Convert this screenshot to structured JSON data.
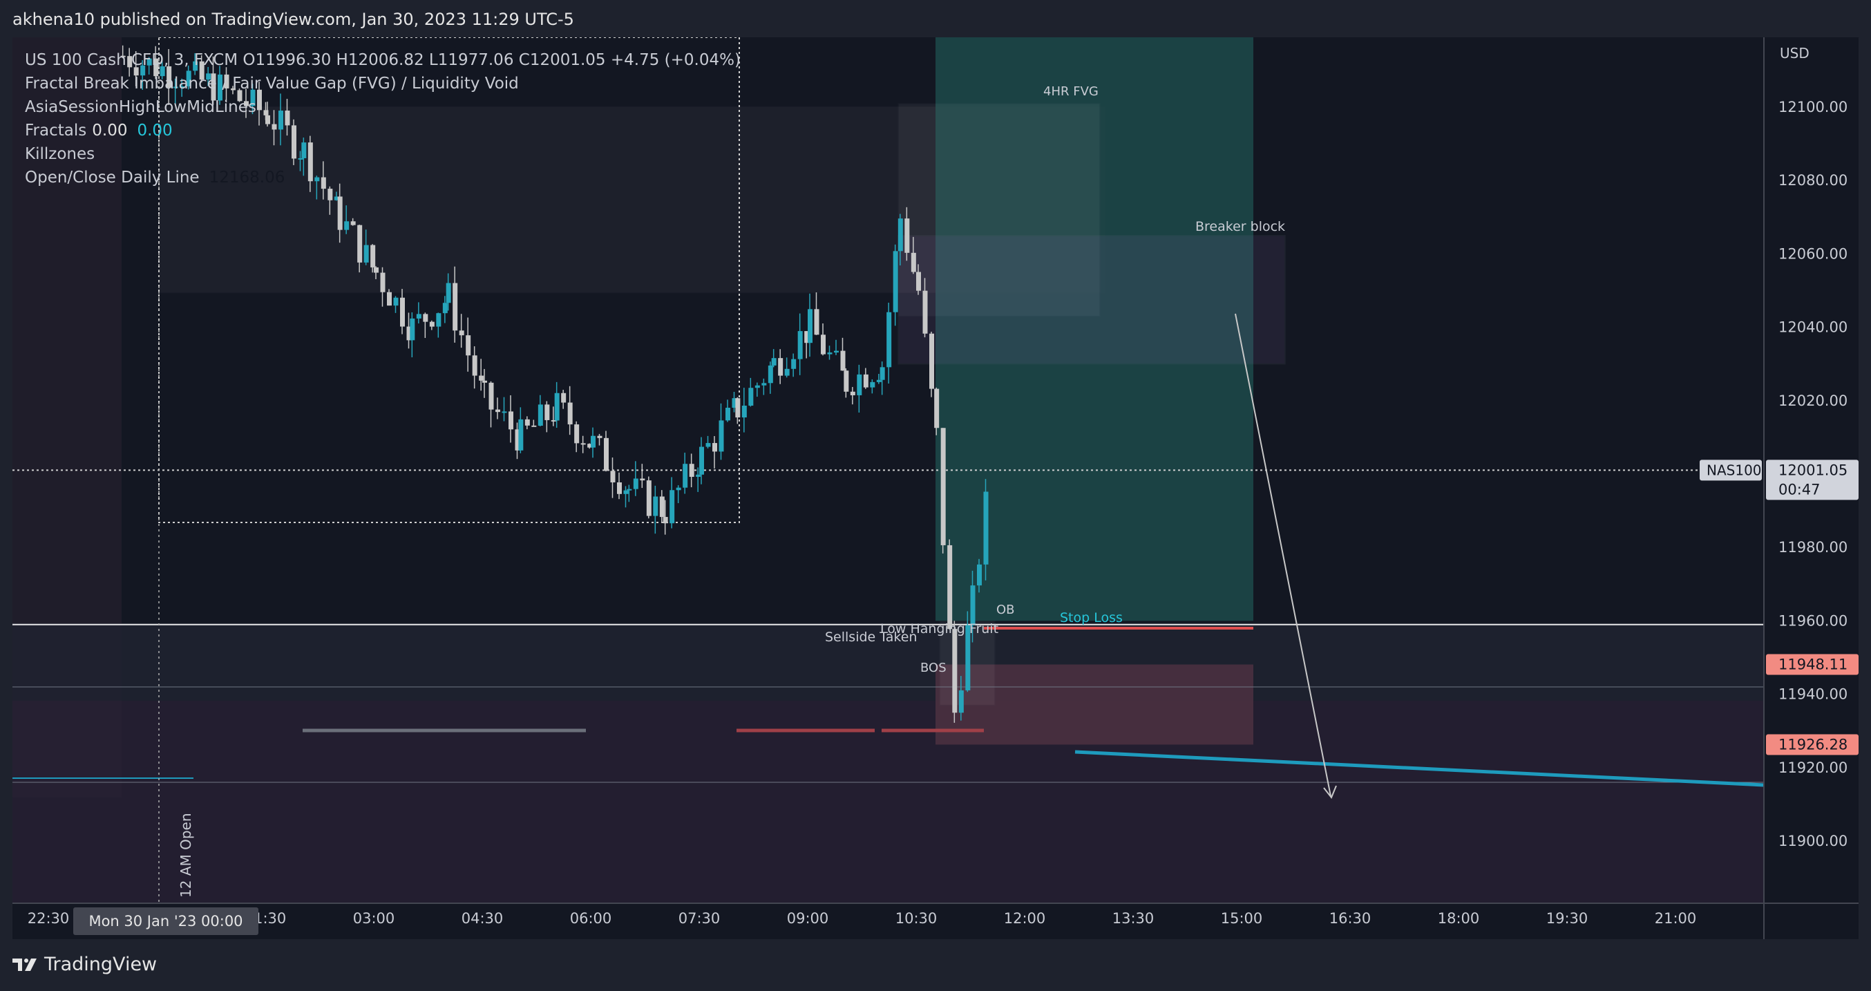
{
  "header": {
    "publisher": "akhena10 published on TradingView.com, Jan 30, 2023 11:29 UTC-5"
  },
  "legend": {
    "symbol_line": "US 100 Cash CFD, 3, FXCM  O11996.30  H12006.82  L11977.06  C12001.05  +4.75 (+0.04%)",
    "indicators": [
      "Fractal Break Imbalance / Fair Value Gap (FVG) / Liquidity Void",
      "AsiaSessionHighLowMidLines"
    ],
    "fractals": {
      "label": "Fractals",
      "value1": "0.00",
      "value2": "0.00"
    },
    "killzones": "Killzones",
    "open_close": {
      "label": "Open/Close Daily Line",
      "value": "12168.06"
    }
  },
  "price_axis": {
    "currency": "USD",
    "ticks": [
      "12100.00",
      "12080.00",
      "12060.00",
      "12040.00",
      "12020.00",
      "11980.00",
      "11960.00",
      "11940.00",
      "11920.00",
      "11900.00"
    ],
    "current_symbol": "NAS100",
    "current_price": "12001.05",
    "countdown": "00:47",
    "marker_upper": "11948.11",
    "marker_lower": "11926.28"
  },
  "time_axis": {
    "ticks": [
      "22:30",
      "01:30",
      "03:00",
      "04:30",
      "06:00",
      "07:30",
      "09:00",
      "10:30",
      "12:00",
      "13:30",
      "15:00",
      "16:30",
      "18:00",
      "19:30",
      "21:00"
    ],
    "cursor_label": "Mon 30 Jan '23   00:00"
  },
  "annotations": {
    "fvg": "4HR FVG",
    "breaker": "Breaker block",
    "ob": "OB",
    "stop_loss": "Stop Loss",
    "low_hanging": "Low Hanging Fruit",
    "sellside": "Sellside Taken",
    "bos": "BOS",
    "open_12am": "12 AM Open"
  },
  "brand": {
    "name": "TradingView"
  },
  "colors": {
    "background": "#131722",
    "up_candle": "#26a5bb",
    "down_candle": "#c8c8c8",
    "stop_loss": "#e05050",
    "target_zone": "#1d4a4a",
    "stop_zone": "#4a3040"
  },
  "chart_data": {
    "type": "candlestick",
    "y_range": [
      11885,
      12110
    ],
    "x_range": [
      "22:00",
      "22:30 (+1)"
    ],
    "current_price": 12001.05,
    "ohlc_last": {
      "open": 11996.3,
      "high": 12006.82,
      "low": 11977.06,
      "close": 12001.05
    },
    "close_path": [
      [
        "23:30",
        12114
      ],
      [
        "00:45",
        12106
      ],
      [
        "01:30",
        12098
      ],
      [
        "02:00",
        12088
      ],
      [
        "02:30",
        12070
      ],
      [
        "03:00",
        12055
      ],
      [
        "03:30",
        12040
      ],
      [
        "04:00",
        12048
      ],
      [
        "04:30",
        12020
      ],
      [
        "05:00",
        12010
      ],
      [
        "05:30",
        12018
      ],
      [
        "06:00",
        12008
      ],
      [
        "06:30",
        11996
      ],
      [
        "07:00",
        11990
      ],
      [
        "07:30",
        12005
      ],
      [
        "08:00",
        12018
      ],
      [
        "08:30",
        12030
      ],
      [
        "09:00",
        12040
      ],
      [
        "09:30",
        12025
      ],
      [
        "10:00",
        12030
      ],
      [
        "10:15",
        12070
      ],
      [
        "10:30",
        12050
      ],
      [
        "10:45",
        12010
      ],
      [
        "11:00",
        11935
      ],
      [
        "11:15",
        11965
      ],
      [
        "11:30",
        12001
      ]
    ],
    "zones": {
      "fvg_4hr": [
        12043,
        12101
      ],
      "breaker_block": [
        12030,
        12065
      ],
      "take_profit": [
        11960,
        12121
      ],
      "stop_zone": [
        11926.28,
        11948.11
      ]
    },
    "levels": {
      "stop_loss": 11958,
      "sellside": 11959
    }
  }
}
